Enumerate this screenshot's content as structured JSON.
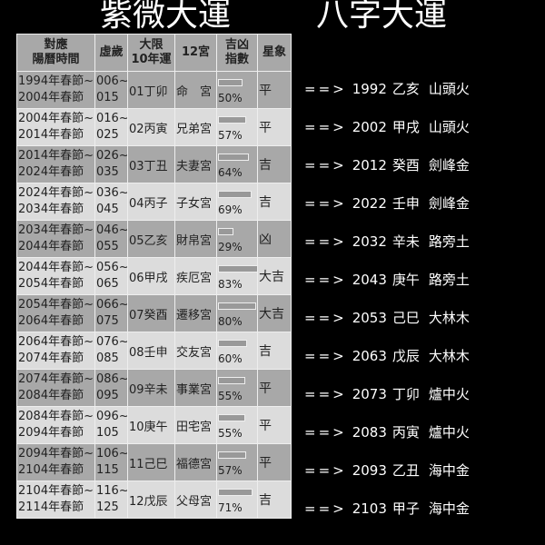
{
  "titles": {
    "ziwei": "紫微大運",
    "bazi": "八字大運"
  },
  "headers": [
    "對應\n陽曆時間",
    "虛歲",
    "大限\n10年運",
    "12宮",
    "吉凶\n指數",
    "星象"
  ],
  "rows": [
    {
      "period": [
        "1994年春節~",
        "2004年春節"
      ],
      "age": [
        "006~",
        "015"
      ],
      "daxian": "01丁卯",
      "palace": "命　宮",
      "pct": 50,
      "pct_label": "50%",
      "star": "平"
    },
    {
      "period": [
        "2004年春節~",
        "2014年春節"
      ],
      "age": [
        "016~",
        "025"
      ],
      "daxian": "02丙寅",
      "palace": "兄弟宮",
      "pct": 57,
      "pct_label": "57%",
      "star": "平"
    },
    {
      "period": [
        "2014年春節~",
        "2024年春節"
      ],
      "age": [
        "026~",
        "035"
      ],
      "daxian": "03丁丑",
      "palace": "夫妻宮",
      "pct": 64,
      "pct_label": "64%",
      "star": "吉"
    },
    {
      "period": [
        "2024年春節~",
        "2034年春節"
      ],
      "age": [
        "036~",
        "045"
      ],
      "daxian": "04丙子",
      "palace": "子女宮",
      "pct": 69,
      "pct_label": "69%",
      "star": "吉"
    },
    {
      "period": [
        "2034年春節~",
        "2044年春節"
      ],
      "age": [
        "046~",
        "055"
      ],
      "daxian": "05乙亥",
      "palace": "財帛宮",
      "pct": 29,
      "pct_label": "29%",
      "star": "凶"
    },
    {
      "period": [
        "2044年春節~",
        "2054年春節"
      ],
      "age": [
        "056~",
        "065"
      ],
      "daxian": "06甲戌",
      "palace": "疾厄宮",
      "pct": 83,
      "pct_label": "83%",
      "star": "大吉"
    },
    {
      "period": [
        "2054年春節~",
        "2064年春節"
      ],
      "age": [
        "066~",
        "075"
      ],
      "daxian": "07癸酉",
      "palace": "遷移宮",
      "pct": 80,
      "pct_label": "80%",
      "star": "大吉"
    },
    {
      "period": [
        "2064年春節~",
        "2074年春節"
      ],
      "age": [
        "076~",
        "085"
      ],
      "daxian": "08壬申",
      "palace": "交友宮",
      "pct": 60,
      "pct_label": "60%",
      "star": "吉"
    },
    {
      "period": [
        "2074年春節~",
        "2084年春節"
      ],
      "age": [
        "086~",
        "095"
      ],
      "daxian": "09辛未",
      "palace": "事業宮",
      "pct": 55,
      "pct_label": "55%",
      "star": "平"
    },
    {
      "period": [
        "2084年春節~",
        "2094年春節"
      ],
      "age": [
        "096~",
        "105"
      ],
      "daxian": "10庚午",
      "palace": "田宅宮",
      "pct": 55,
      "pct_label": "55%",
      "star": "平"
    },
    {
      "period": [
        "2094年春節~",
        "2104年春節"
      ],
      "age": [
        "106~",
        "115"
      ],
      "daxian": "11己巳",
      "palace": "福德宮",
      "pct": 57,
      "pct_label": "57%",
      "star": "平"
    },
    {
      "period": [
        "2104年春節~",
        "2114年春節"
      ],
      "age": [
        "116~",
        "125"
      ],
      "daxian": "12戊辰",
      "palace": "父母宮",
      "pct": 71,
      "pct_label": "71%",
      "star": "吉"
    }
  ],
  "bazi": [
    {
      "arrow": "==>",
      "year": "1992",
      "ganzhi": "乙亥",
      "element": "山頭火"
    },
    {
      "arrow": "==>",
      "year": "2002",
      "ganzhi": "甲戌",
      "element": "山頭火"
    },
    {
      "arrow": "==>",
      "year": "2012",
      "ganzhi": "癸酉",
      "element": "劍峰金"
    },
    {
      "arrow": "==>",
      "year": "2022",
      "ganzhi": "壬申",
      "element": "劍峰金"
    },
    {
      "arrow": "==>",
      "year": "2032",
      "ganzhi": "辛未",
      "element": "路旁土"
    },
    {
      "arrow": "==>",
      "year": "2043",
      "ganzhi": "庚午",
      "element": "路旁土"
    },
    {
      "arrow": "==>",
      "year": "2053",
      "ganzhi": "己巳",
      "element": "大林木"
    },
    {
      "arrow": "==>",
      "year": "2063",
      "ganzhi": "戊辰",
      "element": "大林木"
    },
    {
      "arrow": "==>",
      "year": "2073",
      "ganzhi": "丁卯",
      "element": "爐中火"
    },
    {
      "arrow": "==>",
      "year": "2083",
      "ganzhi": "丙寅",
      "element": "爐中火"
    },
    {
      "arrow": "==>",
      "year": "2093",
      "ganzhi": "乙丑",
      "element": "海中金"
    },
    {
      "arrow": "==>",
      "year": "2103",
      "ganzhi": "甲子",
      "element": "海中金"
    }
  ]
}
